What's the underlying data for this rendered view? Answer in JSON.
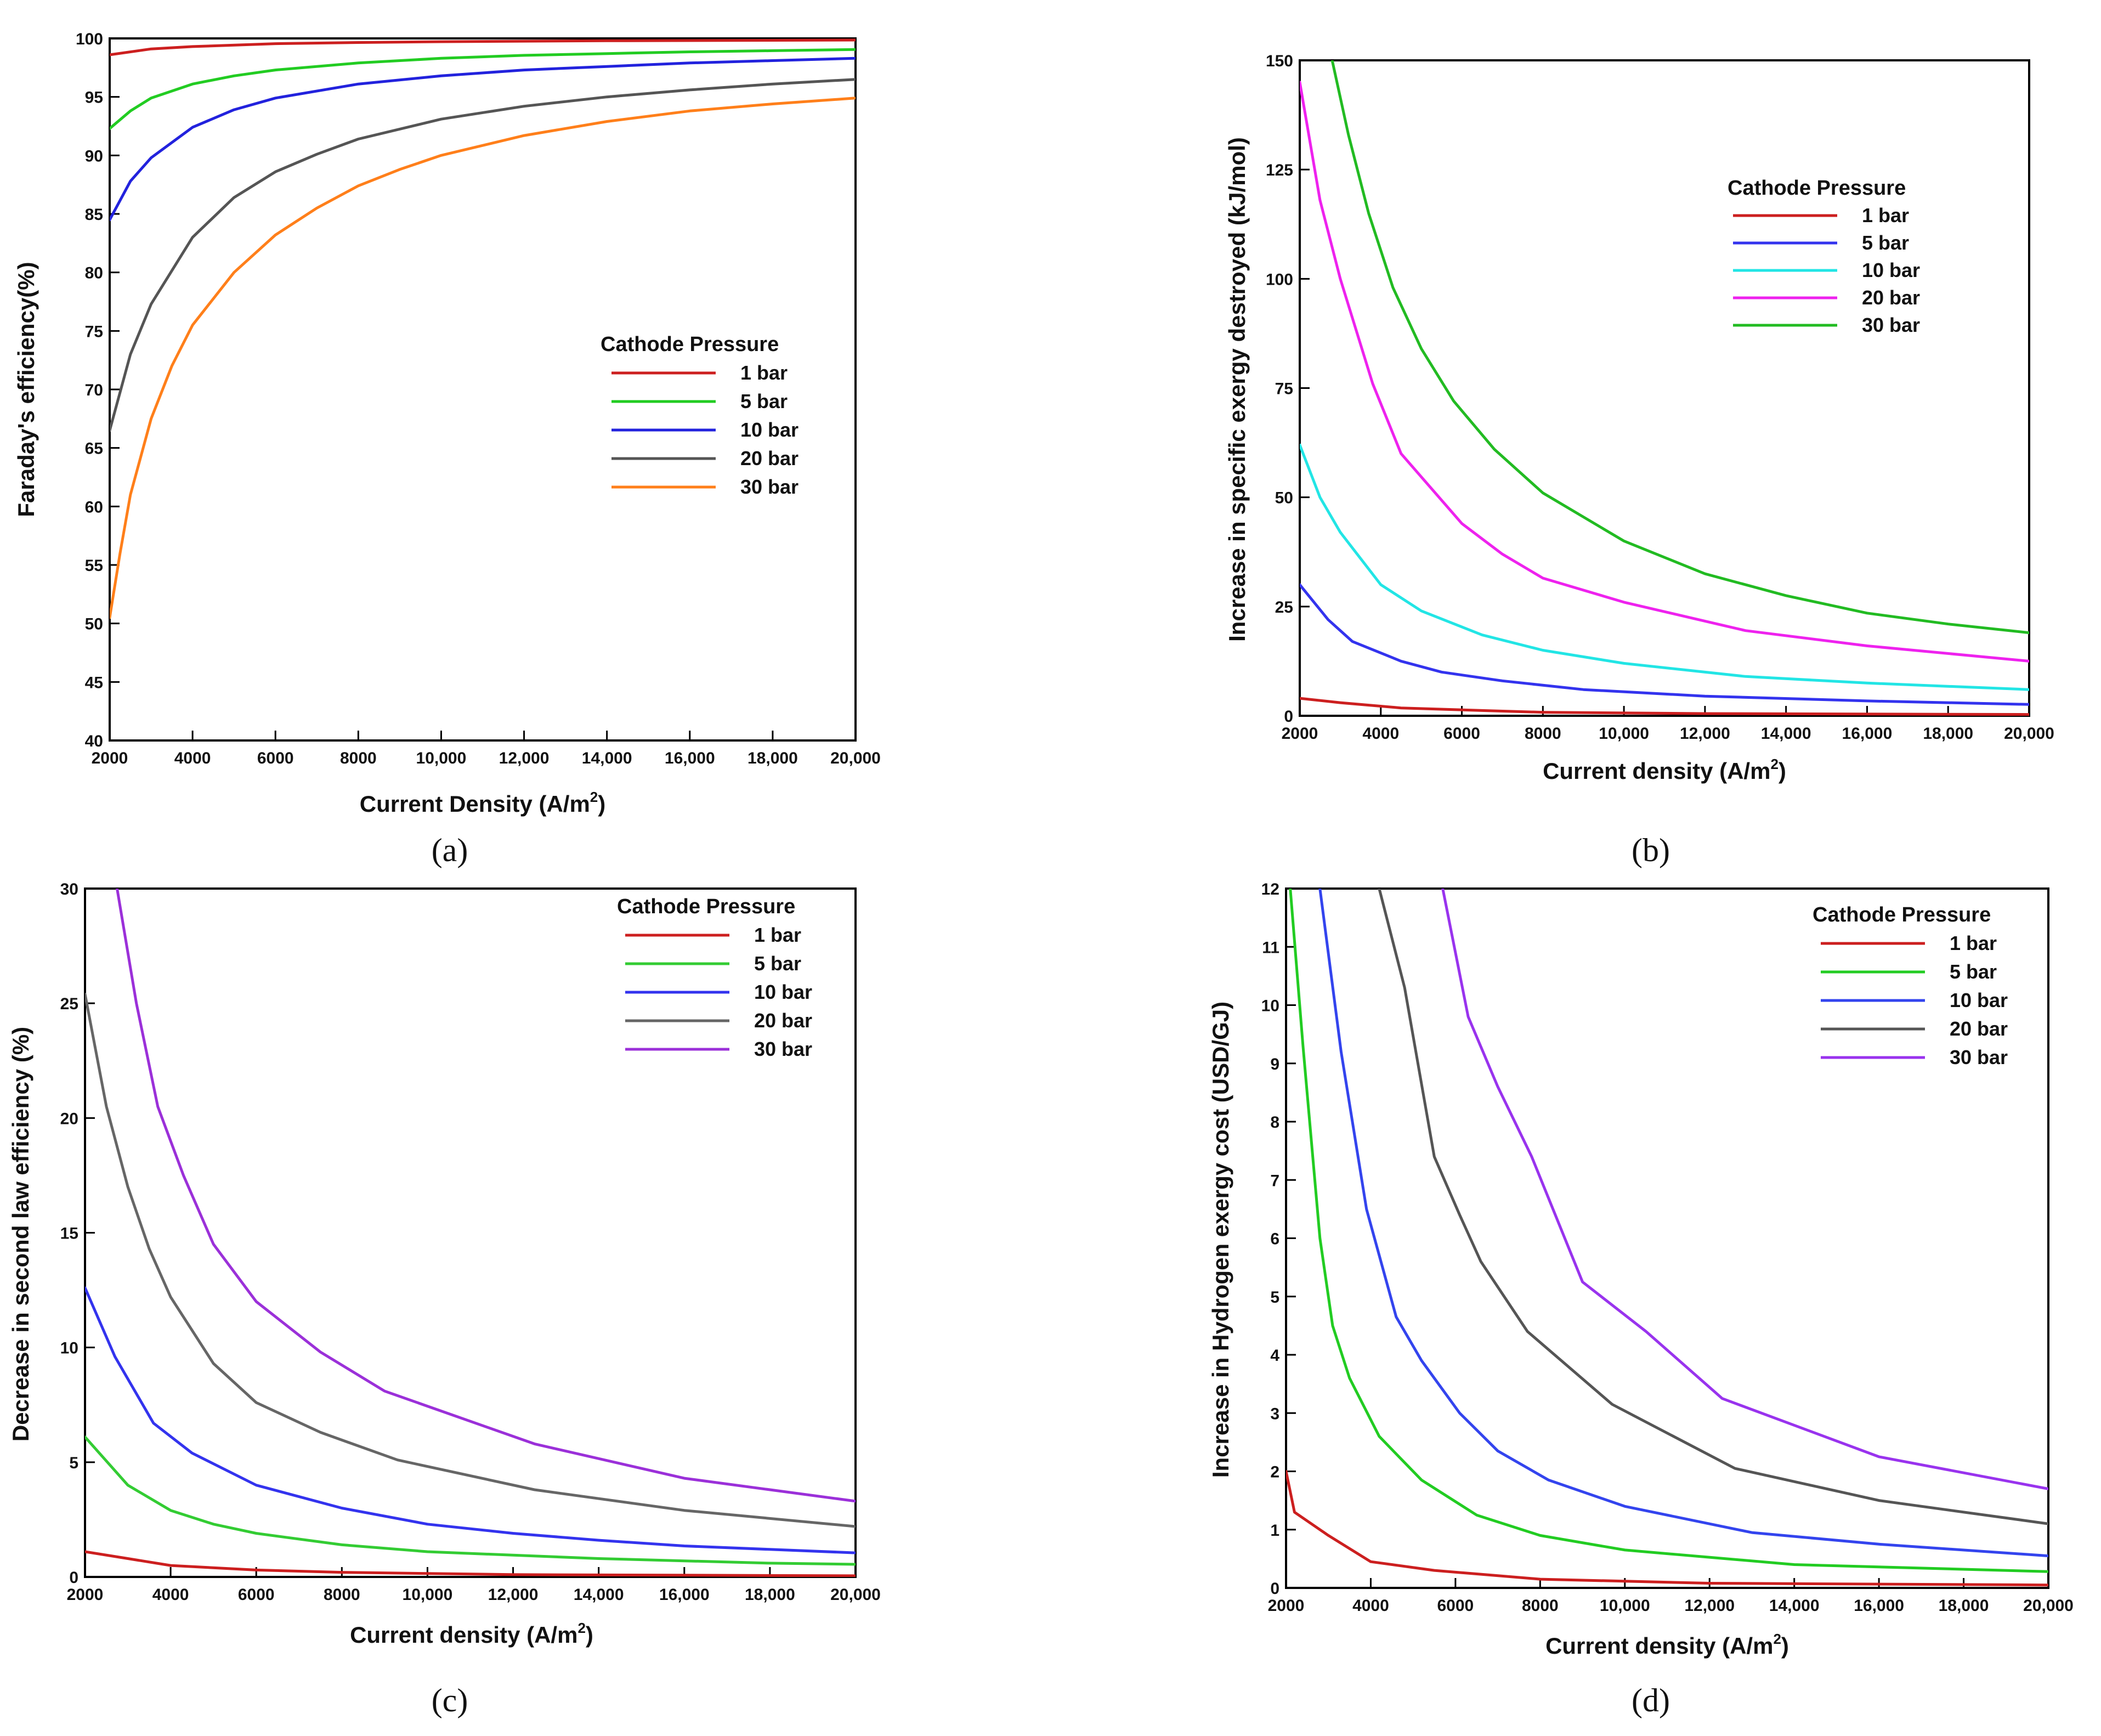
{
  "captions": [
    "(a)",
    "(b)",
    "(c)",
    "(d)"
  ],
  "chart_data": [
    {
      "type": "line",
      "panel": "a",
      "caption_letter": "a",
      "xlabel": "Current Density (A/m",
      "xlabel_sup": "2",
      "xlabel_end": ")",
      "ylabel": "Faraday's efficiency(%)",
      "xlim": [
        2000,
        20000
      ],
      "ylim": [
        40,
        100
      ],
      "xticks": [
        2000,
        4000,
        6000,
        8000,
        10000,
        12000,
        14000,
        16000,
        18000,
        20000
      ],
      "xtick_labels": [
        "2000",
        "4000",
        "6000",
        "8000",
        "10,000",
        "12,000",
        "14,000",
        "16,000",
        "18,000",
        "20,000"
      ],
      "yticks": [
        40,
        45,
        50,
        55,
        60,
        65,
        70,
        75,
        80,
        85,
        90,
        95,
        100
      ],
      "ytick_labels": [
        "40",
        "45",
        "50",
        "55",
        "60",
        "65",
        "70",
        "75",
        "80",
        "85",
        "90",
        "95",
        "100"
      ],
      "legend_title": "Cathode Pressure",
      "series": [
        {
          "name": "1 bar",
          "color": "#cc1f1f",
          "x": [
            2000,
            3000,
            4000,
            6000,
            8000,
            10000,
            14000,
            20000
          ],
          "y": [
            98.6,
            99.1,
            99.3,
            99.55,
            99.65,
            99.72,
            99.8,
            99.86
          ]
        },
        {
          "name": "5 bar",
          "color": "#22cc22",
          "x": [
            2000,
            2500,
            3000,
            4000,
            5000,
            6000,
            8000,
            10000,
            12000,
            14000,
            16000,
            18000,
            20000
          ],
          "y": [
            92.3,
            93.8,
            94.9,
            96.1,
            96.8,
            97.3,
            97.9,
            98.3,
            98.55,
            98.7,
            98.85,
            98.95,
            99.05
          ]
        },
        {
          "name": "10 bar",
          "color": "#2222dd",
          "x": [
            2000,
            2500,
            3000,
            4000,
            5000,
            6000,
            8000,
            10000,
            12000,
            14000,
            16000,
            18000,
            20000
          ],
          "y": [
            84.5,
            87.8,
            89.8,
            92.4,
            93.9,
            94.9,
            96.1,
            96.8,
            97.3,
            97.6,
            97.9,
            98.1,
            98.3
          ]
        },
        {
          "name": "20 bar",
          "color": "#555555",
          "x": [
            2000,
            2500,
            3000,
            4000,
            5000,
            6000,
            7000,
            8000,
            10000,
            12000,
            14000,
            16000,
            18000,
            20000
          ],
          "y": [
            66.5,
            73.0,
            77.3,
            83.0,
            86.4,
            88.6,
            90.1,
            91.4,
            93.1,
            94.2,
            95.0,
            95.6,
            96.1,
            96.5
          ]
        },
        {
          "name": "30 bar",
          "color": "#ff7f1a",
          "x": [
            2000,
            2250,
            2500,
            3000,
            3500,
            4000,
            5000,
            6000,
            7000,
            8000,
            9000,
            10000,
            12000,
            14000,
            16000,
            18000,
            20000
          ],
          "y": [
            50.5,
            56.0,
            61.0,
            67.5,
            72.0,
            75.5,
            80.0,
            83.2,
            85.5,
            87.4,
            88.8,
            90.0,
            91.7,
            92.9,
            93.8,
            94.4,
            94.9
          ]
        }
      ]
    },
    {
      "type": "line",
      "panel": "b",
      "caption_letter": "b",
      "xlabel": "Current density (A/m",
      "xlabel_sup": "2",
      "xlabel_end": ")",
      "ylabel": "Increase in specific exergy destroyed (kJ/mol)",
      "xlim": [
        2000,
        20000
      ],
      "ylim": [
        0,
        150
      ],
      "xticks": [
        2000,
        4000,
        6000,
        8000,
        10000,
        12000,
        14000,
        16000,
        18000,
        20000
      ],
      "xtick_labels": [
        "2000",
        "4000",
        "6000",
        "8000",
        "10,000",
        "12,000",
        "14,000",
        "16,000",
        "18,000",
        "20,000"
      ],
      "yticks": [
        0,
        25,
        50,
        75,
        100,
        125,
        150
      ],
      "ytick_labels": [
        "0",
        "25",
        "50",
        "75",
        "100",
        "125",
        "150"
      ],
      "legend_title": "Cathode Pressure",
      "series": [
        {
          "name": "1 bar",
          "color": "#cc1f1f",
          "x": [
            2000,
            3000,
            4500,
            6500,
            8000,
            12000,
            20000
          ],
          "y": [
            4,
            3,
            1.8,
            1.2,
            0.8,
            0.5,
            0.3
          ]
        },
        {
          "name": "5 bar",
          "color": "#3333ee",
          "x": [
            2000,
            2700,
            3300,
            4500,
            5500,
            7000,
            9000,
            12000,
            16000,
            20000
          ],
          "y": [
            30,
            22,
            17,
            12.5,
            10,
            8,
            6,
            4.5,
            3.4,
            2.6
          ]
        },
        {
          "name": "10 bar",
          "color": "#22e5e5",
          "x": [
            2000,
            2500,
            3000,
            4000,
            5000,
            6500,
            8000,
            10000,
            13000,
            16000,
            20000
          ],
          "y": [
            62,
            50,
            42,
            30,
            24,
            18.5,
            15,
            12,
            9,
            7.5,
            6
          ]
        },
        {
          "name": "20 bar",
          "color": "#ee22ee",
          "x": [
            2000,
            2500,
            3000,
            3800,
            4500,
            6000,
            7000,
            8000,
            10000,
            13000,
            16000,
            20000
          ],
          "y": [
            145,
            118,
            100,
            76,
            60,
            44,
            37,
            31.5,
            26,
            19.5,
            16,
            12.5
          ]
        },
        {
          "name": "30 bar",
          "color": "#22bb22",
          "x": [
            2800,
            3200,
            3700,
            4300,
            5000,
            5800,
            6800,
            8000,
            10000,
            12000,
            14000,
            16000,
            18000,
            20000
          ],
          "y": [
            150,
            133,
            115,
            98,
            84,
            72,
            61,
            51,
            40,
            32.5,
            27.5,
            23.5,
            21,
            19
          ]
        }
      ]
    },
    {
      "type": "line",
      "panel": "c",
      "caption_letter": "c",
      "xlabel": "Current density (A/m",
      "xlabel_sup": "2",
      "xlabel_end": ")",
      "ylabel": "Decrease in second law efficiency (%)",
      "xlim": [
        2000,
        20000
      ],
      "ylim": [
        0,
        30
      ],
      "xticks": [
        2000,
        4000,
        6000,
        8000,
        10000,
        12000,
        14000,
        16000,
        18000,
        20000
      ],
      "xtick_labels": [
        "2000",
        "4000",
        "6000",
        "8000",
        "10,000",
        "12,000",
        "14,000",
        "16,000",
        "18,000",
        "20,000"
      ],
      "yticks": [
        0,
        5,
        10,
        15,
        20,
        25,
        30
      ],
      "ytick_labels": [
        "0",
        "5",
        "10",
        "15",
        "20",
        "25",
        "30"
      ],
      "legend_title": "Cathode Pressure",
      "series": [
        {
          "name": "1 bar",
          "color": "#cc1f1f",
          "x": [
            2000,
            3000,
            4000,
            6000,
            8000,
            12000,
            20000
          ],
          "y": [
            1.1,
            0.8,
            0.5,
            0.3,
            0.2,
            0.1,
            0.05
          ]
        },
        {
          "name": "5 bar",
          "color": "#33cc33",
          "x": [
            2000,
            3000,
            4000,
            5000,
            6000,
            8000,
            10000,
            12000,
            14000,
            16000,
            18000,
            20000
          ],
          "y": [
            6.1,
            4.0,
            2.9,
            2.3,
            1.9,
            1.4,
            1.1,
            0.95,
            0.8,
            0.7,
            0.6,
            0.55
          ]
        },
        {
          "name": "10 bar",
          "color": "#3333ee",
          "x": [
            2000,
            2700,
            3600,
            4500,
            6000,
            8000,
            10000,
            12000,
            14000,
            16000,
            18000,
            20000
          ],
          "y": [
            12.6,
            9.6,
            6.7,
            5.4,
            4.0,
            3.0,
            2.3,
            1.9,
            1.6,
            1.35,
            1.2,
            1.05
          ]
        },
        {
          "name": "20 bar",
          "color": "#666666",
          "x": [
            2000,
            2500,
            3000,
            3500,
            4000,
            5000,
            6000,
            7500,
            9300,
            12500,
            16000,
            20000
          ],
          "y": [
            25.4,
            20.5,
            17,
            14.3,
            12.2,
            9.3,
            7.6,
            6.3,
            5.1,
            3.8,
            2.9,
            2.2
          ]
        },
        {
          "name": "30 bar",
          "color": "#9b30d9",
          "x": [
            2750,
            3200,
            3700,
            4300,
            5000,
            6000,
            7500,
            9000,
            12500,
            16000,
            20000
          ],
          "y": [
            30,
            25,
            20.5,
            17.5,
            14.5,
            12,
            9.8,
            8.1,
            5.8,
            4.3,
            3.3
          ]
        }
      ]
    },
    {
      "type": "line",
      "panel": "d",
      "caption_letter": "d",
      "xlabel": "Current density (A/m",
      "xlabel_sup": "2",
      "xlabel_end": ")",
      "ylabel": "Increase in Hydrogen exergy cost (USD/GJ)",
      "xlim": [
        2000,
        20000
      ],
      "ylim": [
        0,
        12
      ],
      "xticks": [
        2000,
        4000,
        6000,
        8000,
        10000,
        12000,
        14000,
        16000,
        18000,
        20000
      ],
      "xtick_labels": [
        "2000",
        "4000",
        "6000",
        "8000",
        "10,000",
        "12,000",
        "14,000",
        "16,000",
        "18,000",
        "20,000"
      ],
      "yticks": [
        0,
        1,
        2,
        3,
        4,
        5,
        6,
        7,
        8,
        9,
        10,
        11,
        12
      ],
      "ytick_labels": [
        "0",
        "1",
        "2",
        "3",
        "4",
        "5",
        "6",
        "7",
        "8",
        "9",
        "10",
        "11",
        "12"
      ],
      "legend_title": "Cathode Pressure",
      "series": [
        {
          "name": "1 bar",
          "color": "#cc1f1f",
          "x": [
            2000,
            2200,
            3000,
            4000,
            5500,
            8000,
            12000,
            20000
          ],
          "y": [
            2.0,
            1.3,
            0.9,
            0.45,
            0.3,
            0.15,
            0.08,
            0.05
          ]
        },
        {
          "name": "5 bar",
          "color": "#22cc22",
          "x": [
            2100,
            2400,
            2800,
            3100,
            3500,
            4200,
            5200,
            6500,
            8000,
            10000,
            14000,
            20000
          ],
          "y": [
            12,
            9.3,
            6.0,
            4.5,
            3.6,
            2.6,
            1.85,
            1.25,
            0.9,
            0.65,
            0.4,
            0.28
          ]
        },
        {
          "name": "10 bar",
          "color": "#3344ee",
          "x": [
            2800,
            3300,
            3900,
            4600,
            5200,
            6100,
            7000,
            8200,
            10000,
            13000,
            16000,
            20000
          ],
          "y": [
            12,
            9.2,
            6.5,
            4.65,
            3.9,
            3.0,
            2.35,
            1.85,
            1.4,
            0.95,
            0.75,
            0.55
          ]
        },
        {
          "name": "20 bar",
          "color": "#555555",
          "x": [
            4200,
            4800,
            5500,
            6100,
            6600,
            7700,
            9700,
            12600,
            16000,
            20000
          ],
          "y": [
            12,
            10.3,
            7.4,
            6.4,
            5.6,
            4.4,
            3.15,
            2.05,
            1.5,
            1.1
          ]
        },
        {
          "name": "30 bar",
          "color": "#9933ee",
          "x": [
            5700,
            6300,
            7000,
            7800,
            9000,
            10500,
            12300,
            16000,
            20000
          ],
          "y": [
            12,
            9.8,
            8.6,
            7.4,
            5.25,
            4.4,
            3.25,
            2.25,
            1.7
          ]
        }
      ]
    }
  ]
}
